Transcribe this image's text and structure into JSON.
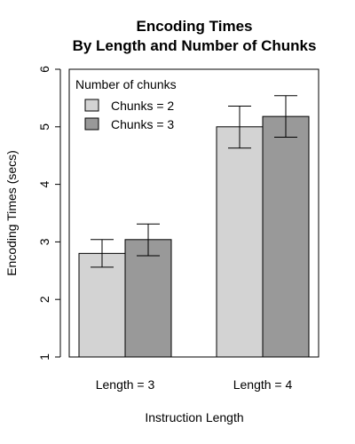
{
  "chart_data": {
    "type": "bar",
    "title": "Encoding Times",
    "subtitle": "By Length and Number of Chunks",
    "xlabel": "Instruction Length",
    "ylabel": "Encoding Times (secs)",
    "ylim": [
      1,
      6
    ],
    "yticks": [
      "1",
      "2",
      "3",
      "4",
      "5",
      "6"
    ],
    "categories": [
      "Length = 3",
      "Length = 4"
    ],
    "legend": {
      "title": "Number of chunks",
      "position": "top-left"
    },
    "series": [
      {
        "name": "Chunks = 2",
        "color": "#d3d3d3",
        "values": [
          2.8,
          5.0
        ],
        "error_low": [
          2.56,
          4.63
        ],
        "error_high": [
          3.04,
          5.36
        ]
      },
      {
        "name": "Chunks = 3",
        "color": "#999999",
        "values": [
          3.04,
          5.18
        ],
        "error_low": [
          2.76,
          4.82
        ],
        "error_high": [
          3.31,
          5.54
        ]
      }
    ]
  }
}
